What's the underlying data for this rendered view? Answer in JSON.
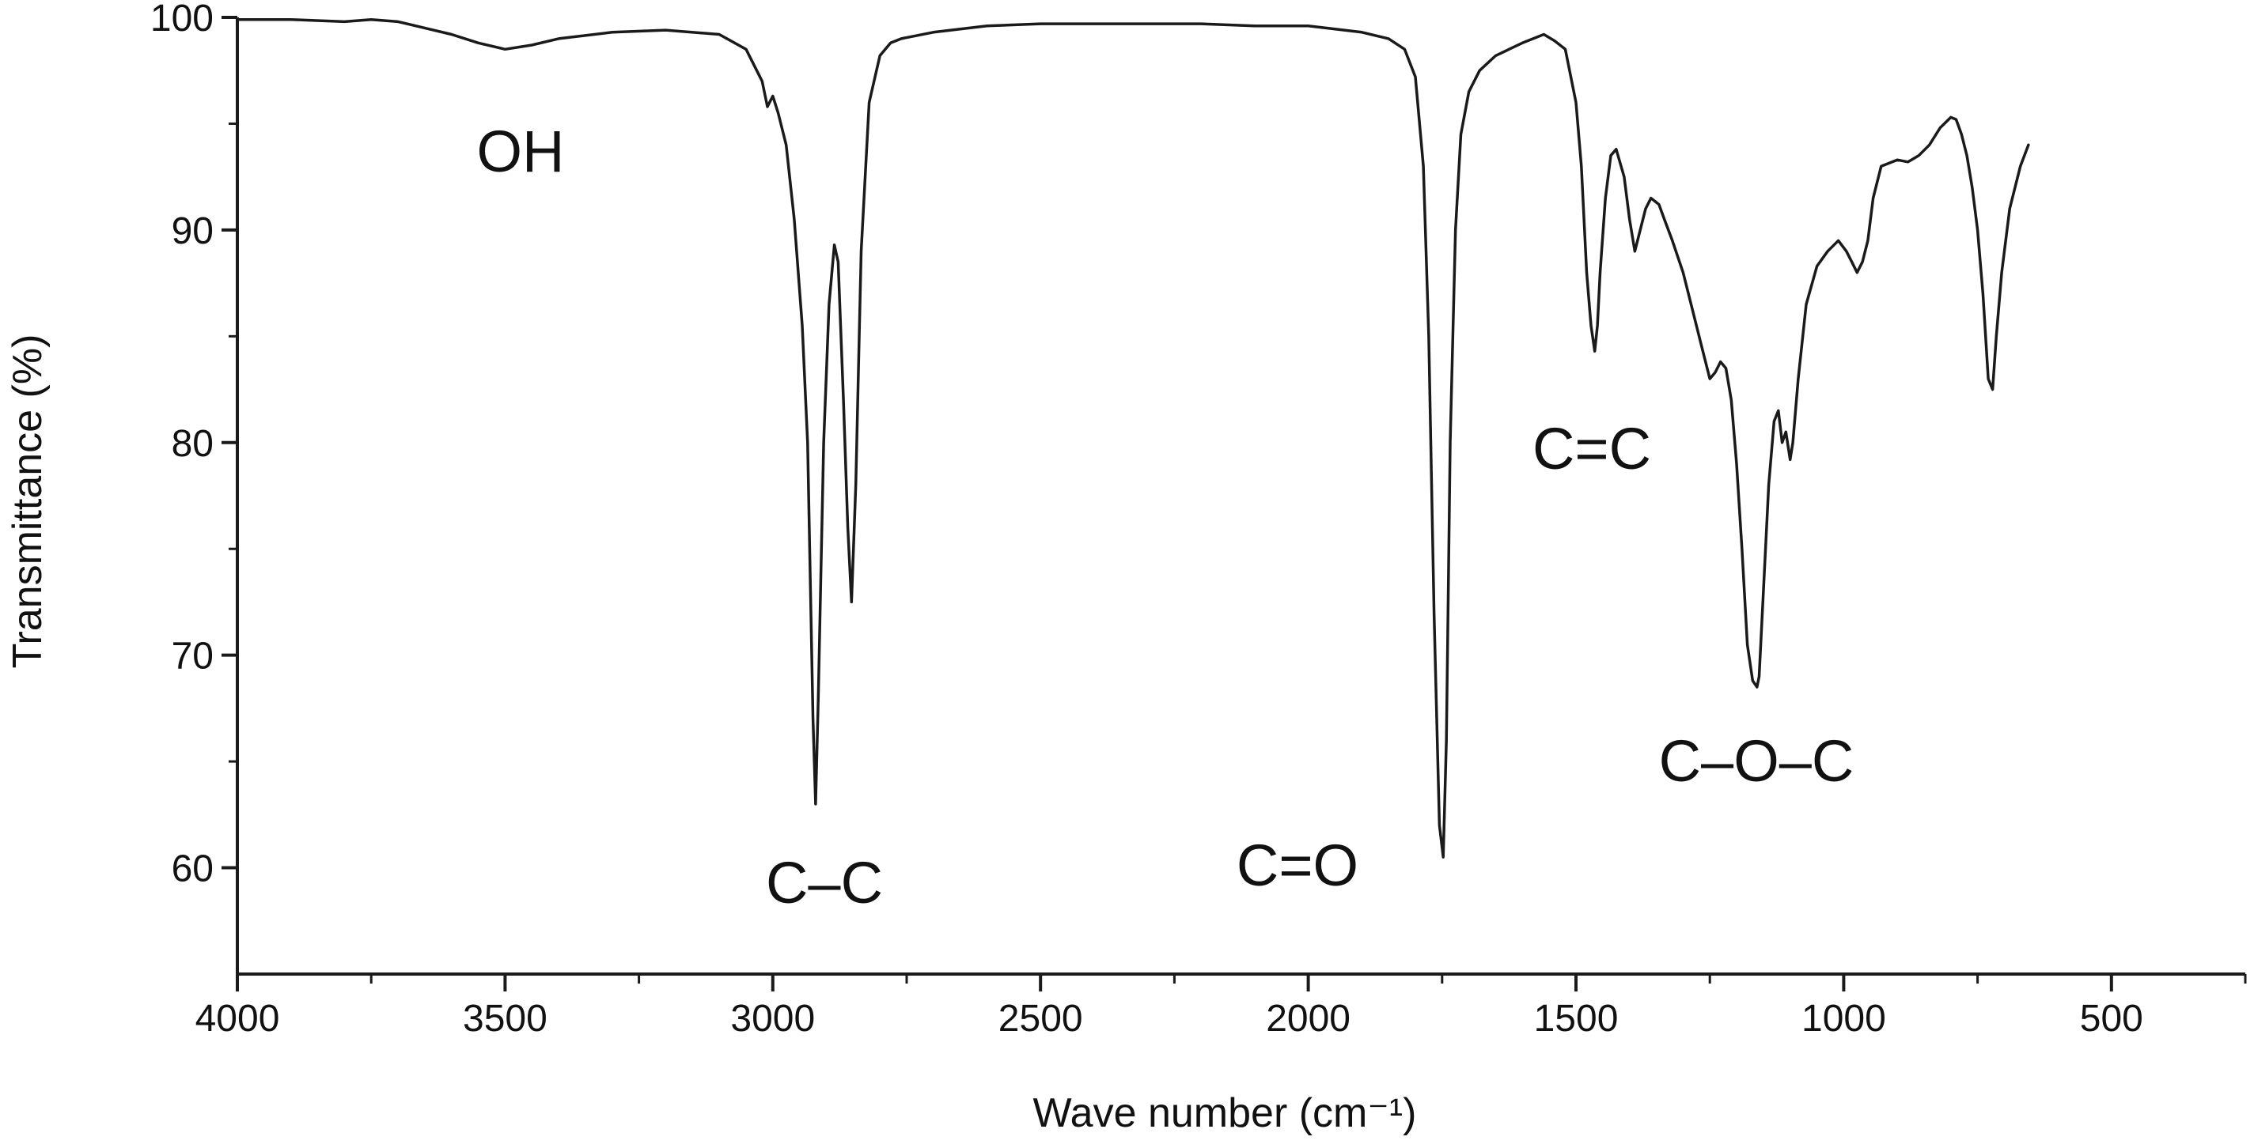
{
  "chart_data": {
    "type": "line",
    "title": "",
    "xlabel": "Wave number (cm⁻¹)",
    "ylabel": "Transmittance (%)",
    "xlim": [
      4000,
      250
    ],
    "ylim": [
      55,
      100
    ],
    "x_ticks": [
      4000,
      3500,
      3000,
      2500,
      2000,
      1500,
      1000,
      500
    ],
    "x_tick_labels": [
      "4000",
      "3500",
      "3000",
      "2500",
      "2000",
      "1500",
      "1000",
      "500"
    ],
    "y_ticks": [
      60,
      70,
      80,
      90,
      100
    ],
    "y_tick_labels": [
      "60",
      "70",
      "80",
      "90",
      "100"
    ],
    "grid": false,
    "series_color": "#1a1a1a",
    "series": [
      {
        "x": [
          4000,
          3900,
          3800,
          3750,
          3700,
          3650,
          3600,
          3550,
          3500,
          3450,
          3400,
          3300,
          3200,
          3100,
          3050,
          3020,
          3010,
          3000,
          2990,
          2975,
          2960,
          2945,
          2935,
          2925,
          2920,
          2915,
          2905,
          2895,
          2885,
          2878,
          2868,
          2860,
          2853,
          2845,
          2835,
          2820,
          2800,
          2780,
          2760,
          2700,
          2600,
          2500,
          2400,
          2300,
          2200,
          2100,
          2000,
          1900,
          1850,
          1820,
          1800,
          1785,
          1775,
          1765,
          1755,
          1748,
          1742,
          1735,
          1725,
          1715,
          1700,
          1680,
          1650,
          1600,
          1560,
          1540,
          1520,
          1500,
          1490,
          1480,
          1472,
          1465,
          1460,
          1455,
          1445,
          1435,
          1425,
          1410,
          1400,
          1390,
          1380,
          1375,
          1370,
          1360,
          1345,
          1335,
          1320,
          1300,
          1280,
          1265,
          1250,
          1240,
          1230,
          1220,
          1210,
          1200,
          1190,
          1180,
          1170,
          1162,
          1158,
          1150,
          1140,
          1130,
          1122,
          1115,
          1108,
          1100,
          1095,
          1085,
          1070,
          1050,
          1030,
          1010,
          995,
          985,
          975,
          965,
          955,
          945,
          930,
          900,
          880,
          860,
          840,
          820,
          800,
          790,
          780,
          770,
          760,
          750,
          740,
          730,
          722,
          715,
          705,
          690,
          670,
          655
        ],
        "y": [
          99.9,
          99.9,
          99.8,
          99.9,
          99.8,
          99.5,
          99.2,
          98.8,
          98.5,
          98.7,
          99.0,
          99.3,
          99.4,
          99.2,
          98.5,
          97.0,
          95.8,
          96.3,
          95.5,
          94.0,
          90.5,
          85.5,
          80.0,
          67.0,
          63.0,
          68.0,
          80.0,
          86.5,
          89.3,
          88.5,
          82.0,
          76.0,
          72.5,
          78.0,
          89.0,
          96.0,
          98.2,
          98.8,
          99.0,
          99.3,
          99.6,
          99.7,
          99.7,
          99.7,
          99.7,
          99.6,
          99.6,
          99.3,
          99.0,
          98.5,
          97.2,
          93.0,
          85.0,
          72.0,
          62.0,
          60.5,
          66.0,
          80.0,
          90.0,
          94.5,
          96.5,
          97.5,
          98.2,
          98.8,
          99.2,
          98.9,
          98.5,
          96.0,
          93.0,
          88.0,
          85.5,
          84.3,
          85.5,
          88.0,
          91.5,
          93.5,
          93.8,
          92.5,
          90.5,
          89.0,
          90.0,
          90.5,
          91.0,
          91.5,
          91.2,
          90.5,
          89.5,
          88.0,
          86.0,
          84.5,
          83.0,
          83.3,
          83.8,
          83.5,
          82.0,
          79.0,
          75.0,
          70.5,
          68.8,
          68.5,
          69.0,
          73.0,
          78.0,
          81.0,
          81.5,
          80.0,
          80.5,
          79.2,
          80.0,
          83.0,
          86.5,
          88.3,
          89.0,
          89.5,
          89.0,
          88.5,
          88.0,
          88.5,
          89.5,
          91.5,
          93.0,
          93.3,
          93.2,
          93.5,
          94.0,
          94.8,
          95.3,
          95.2,
          94.5,
          93.5,
          92.0,
          90.0,
          87.0,
          83.0,
          82.5,
          85.0,
          88.0,
          91.0,
          93.0,
          94.0
        ]
      }
    ],
    "annotations": [
      "OH",
      "C–C",
      "C=O",
      "C=C",
      "C–O–C"
    ]
  }
}
